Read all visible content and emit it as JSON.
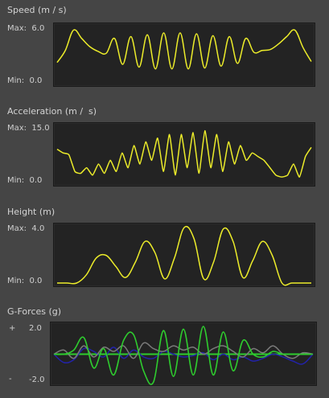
{
  "panels": {
    "speed": {
      "title": "Speed (m / s)",
      "max_label": "Max:  6.0",
      "min_label": "Min:  0.0"
    },
    "acceleration": {
      "title": "Acceleration (m /  s)",
      "max_label": "Max:  15.0",
      "min_label": "Min:  0.0"
    },
    "height": {
      "title": "Height (m)",
      "max_label": "Max:  4.0",
      "min_label": "Min:  0.0"
    },
    "gforces": {
      "title": "G-Forces (g)",
      "plus_label": "+",
      "max_label": "2.0",
      "minus_label": "-",
      "min_label": "-2.0"
    }
  },
  "colors": {
    "background": "#454545",
    "plot_background": "#232323",
    "yellow_trace": "#ecec2a",
    "green_trace": "#2ecc2e",
    "blue_trace": "#2222aa",
    "gray_trace": "#7a7a7a"
  },
  "chart_data": [
    {
      "type": "line",
      "title": "Speed (m / s)",
      "ylim": [
        0,
        6.0
      ],
      "series": [
        {
          "values": [
            2.2,
            3.5,
            5.7,
            4.8,
            3.9,
            3.4,
            3.2,
            4.8,
            2.0,
            5.0,
            1.7,
            5.2,
            1.5,
            5.4,
            1.5,
            5.4,
            1.5,
            5.3,
            1.6,
            5.1,
            1.8,
            5.0,
            2.1,
            4.8,
            3.3,
            3.5,
            3.6,
            4.2,
            5.0,
            5.7,
            3.8,
            2.3
          ]
        }
      ]
    },
    {
      "type": "line",
      "title": "Acceleration (m /  s)",
      "ylim": [
        0,
        15.0
      ],
      "series": [
        {
          "values": [
            9.0,
            8.0,
            7.5,
            3.0,
            2.5,
            4.0,
            2.0,
            5.0,
            2.5,
            6.0,
            3.0,
            8.0,
            4.0,
            10.0,
            5.0,
            11.0,
            6.0,
            12.0,
            3.0,
            13.0,
            2.0,
            13.0,
            4.0,
            13.5,
            2.5,
            14.0,
            4.0,
            13.0,
            3.0,
            11.0,
            5.0,
            10.0,
            6.0,
            8.0,
            7.0,
            6.0,
            4.0,
            2.0,
            1.5,
            2.0,
            5.0,
            1.5,
            7.0,
            9.5
          ]
        }
      ]
    },
    {
      "type": "line",
      "title": "Height (m)",
      "ylim": [
        0,
        4.0
      ],
      "series": [
        {
          "values": [
            0.0,
            0.0,
            0.0,
            0.6,
            1.8,
            2.0,
            1.2,
            0.4,
            1.5,
            3.0,
            2.2,
            0.3,
            1.8,
            4.0,
            3.2,
            0.3,
            1.5,
            3.9,
            3.0,
            0.4,
            1.6,
            3.0,
            2.0,
            0.0,
            0.0,
            0.0,
            0.0
          ]
        }
      ]
    },
    {
      "type": "line",
      "title": "G-Forces (g)",
      "ylim": [
        -2.0,
        2.0
      ],
      "series": [
        {
          "values": [
            0.0,
            0.0,
            0.3,
            1.2,
            -1.0,
            0.4,
            -1.5,
            1.0,
            1.4,
            -1.2,
            -2.0,
            1.7,
            -1.6,
            1.8,
            -1.5,
            2.0,
            -1.5,
            1.6,
            -1.2,
            1.0,
            0.0,
            -0.2,
            0.2,
            0.0,
            0.0,
            0.0,
            0.0
          ]
        },
        {
          "values": [
            0.0,
            -0.6,
            -0.4,
            0.4,
            0.2,
            -0.2,
            0.5,
            -0.3,
            0.3,
            -0.2,
            -0.3,
            0.2,
            0.0,
            -0.2,
            -0.1,
            0.1,
            -0.4,
            0.0,
            -0.4,
            -0.2,
            -0.5,
            -0.3,
            0.0,
            -0.2,
            -0.5,
            -0.7,
            0.0
          ]
        },
        {
          "values": [
            0.0,
            0.3,
            -0.3,
            0.6,
            -0.2,
            0.5,
            0.2,
            0.6,
            -0.3,
            0.8,
            0.4,
            0.2,
            0.6,
            0.3,
            0.5,
            0.0,
            0.4,
            0.6,
            0.2,
            -0.2,
            0.4,
            0.1,
            0.6,
            0.0,
            -0.3,
            0.1,
            0.0
          ]
        }
      ]
    }
  ]
}
